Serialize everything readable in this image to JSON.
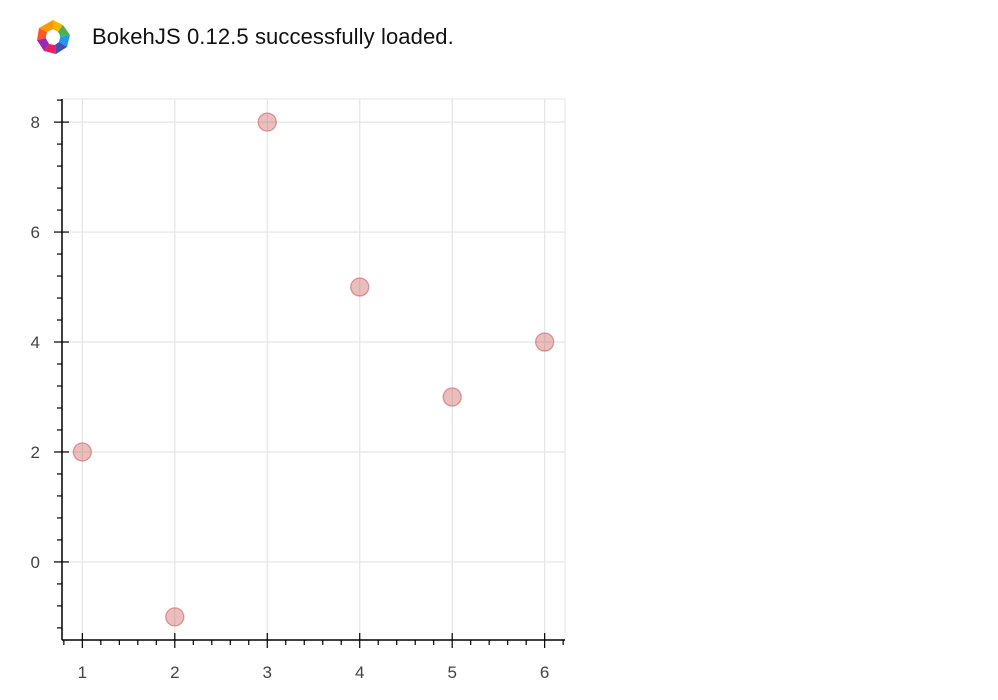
{
  "header": {
    "logo_icon": "bokeh-logo-icon",
    "status_text": "BokehJS 0.12.5 successfully loaded."
  },
  "chart_data": {
    "type": "scatter",
    "title": "",
    "xlabel": "",
    "ylabel": "",
    "x": [
      1,
      2,
      3,
      4,
      5,
      6
    ],
    "y": [
      2,
      -1,
      8,
      5,
      3,
      4
    ],
    "xlim": [
      0.78,
      6.22
    ],
    "ylim": [
      -1.42,
      8.42
    ],
    "x_ticks": [
      1,
      2,
      3,
      4,
      5,
      6
    ],
    "y_ticks": [
      0,
      2,
      4,
      6,
      8
    ],
    "grid": true,
    "legend": "none",
    "marker_color": "#cd5c5c",
    "marker_alpha": 0.4
  }
}
